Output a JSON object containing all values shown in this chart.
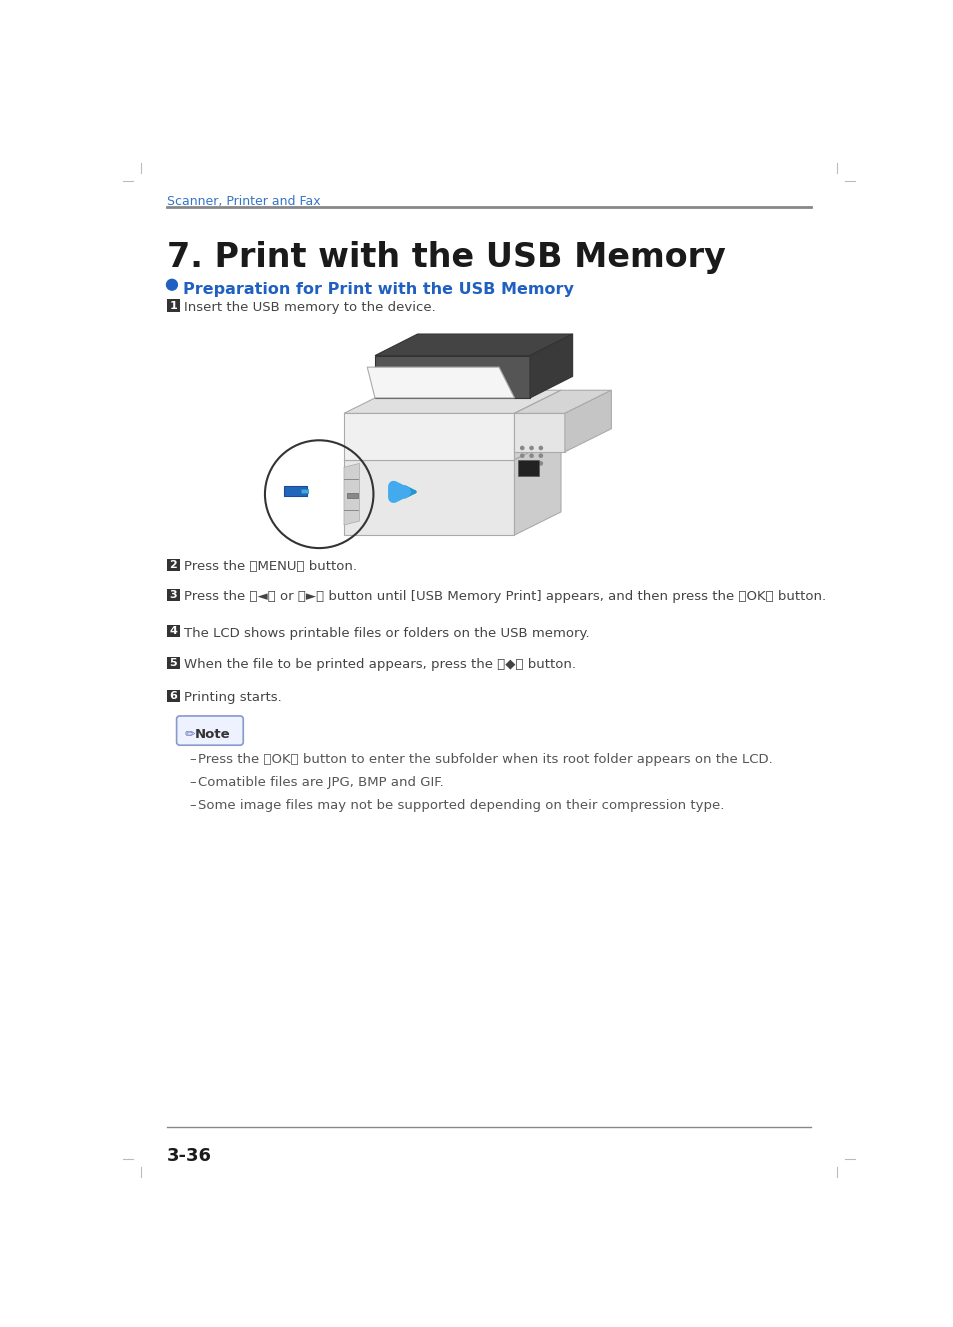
{
  "page_bg": "#ffffff",
  "header_text": "Scanner, Printer and Fax",
  "header_color": "#3575c8",
  "header_line_color": "#888888",
  "title": "7. Print with the USB Memory",
  "title_color": "#1a1a1a",
  "section_title": "Preparation for Print with the USB Memory",
  "section_title_color": "#2060c0",
  "section_dot_color": "#2060c0",
  "steps": [
    {
      "num": "1",
      "text": "Insert the USB memory to the device."
    },
    {
      "num": "2",
      "text": "Press the 【MENU】 button."
    },
    {
      "num": "3",
      "text": "Press the 【◄】 or 【►】 button until [USB Memory Print] appears, and then press the 【OK】 button."
    },
    {
      "num": "4",
      "text": "The LCD shows printable files or folders on the USB memory."
    },
    {
      "num": "5",
      "text": "When the file to be printed appears, press the 【◆】 button."
    },
    {
      "num": "6",
      "text": "Printing starts."
    }
  ],
  "step_bg": "#333333",
  "step_text_color": "#ffffff",
  "note_bullet": [
    "Press the 【OK】 button to enter the subfolder when its root folder appears on the LCD.",
    "Comatible files are JPG, BMP and GIF.",
    "Some image files may not be supported depending on their compression type."
  ],
  "note_text_color": "#555555",
  "footer_text": "3-36",
  "footer_line_color": "#888888",
  "corner_marks_color": "#bbbbbb"
}
